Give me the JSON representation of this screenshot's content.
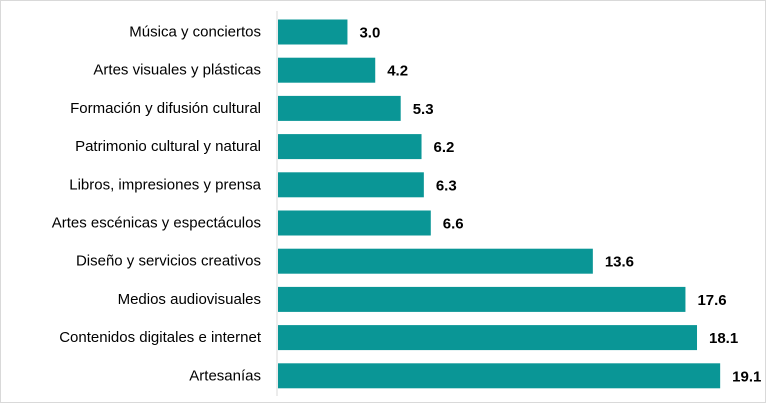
{
  "chart_data": {
    "type": "bar",
    "orientation": "horizontal",
    "categories": [
      "Música y conciertos",
      "Artes visuales y plásticas",
      "Formación y difusión cultural",
      "Patrimonio cultural y natural",
      "Libros, impresiones y prensa",
      "Artes escénicas y espectáculos",
      "Diseño y servicios creativos",
      "Medios audiovisuales",
      "Contenidos digitales e internet",
      "Artesanías"
    ],
    "values": [
      3.0,
      4.2,
      5.3,
      6.2,
      6.3,
      6.6,
      13.6,
      17.6,
      18.1,
      19.1
    ],
    "value_labels": [
      "3.0",
      "4.2",
      "5.3",
      "6.2",
      "6.3",
      "6.6",
      "13.6",
      "17.6",
      "18.1",
      "19.1"
    ],
    "xlim": [
      0,
      20
    ],
    "grid": false,
    "bar_color": "#0a9696",
    "title": "",
    "xlabel": "",
    "ylabel": ""
  }
}
